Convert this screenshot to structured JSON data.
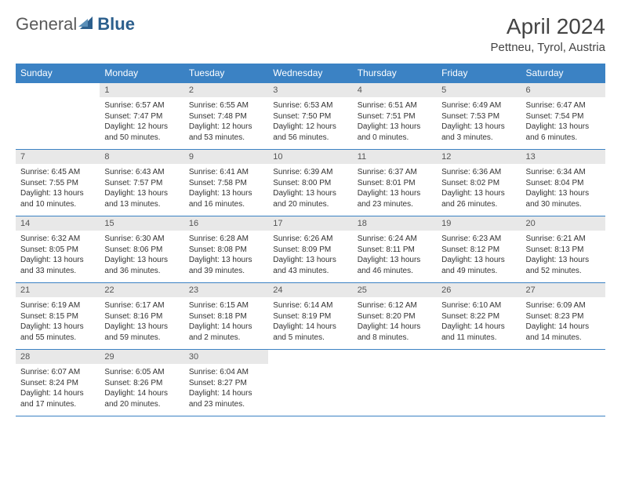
{
  "brand": {
    "text1": "General",
    "text2": "Blue",
    "icon_color": "#2c5f8d"
  },
  "title": "April 2024",
  "location": "Pettneu, Tyrol, Austria",
  "colors": {
    "header_bg": "#3b82c4",
    "header_text": "#ffffff",
    "daynum_bg": "#e8e8e8",
    "border": "#3b82c4"
  },
  "day_names": [
    "Sunday",
    "Monday",
    "Tuesday",
    "Wednesday",
    "Thursday",
    "Friday",
    "Saturday"
  ],
  "weeks": [
    {
      "nums": [
        "",
        "1",
        "2",
        "3",
        "4",
        "5",
        "6"
      ],
      "data": [
        null,
        {
          "sunrise": "6:57 AM",
          "sunset": "7:47 PM",
          "daylight": "12 hours and 50 minutes."
        },
        {
          "sunrise": "6:55 AM",
          "sunset": "7:48 PM",
          "daylight": "12 hours and 53 minutes."
        },
        {
          "sunrise": "6:53 AM",
          "sunset": "7:50 PM",
          "daylight": "12 hours and 56 minutes."
        },
        {
          "sunrise": "6:51 AM",
          "sunset": "7:51 PM",
          "daylight": "13 hours and 0 minutes."
        },
        {
          "sunrise": "6:49 AM",
          "sunset": "7:53 PM",
          "daylight": "13 hours and 3 minutes."
        },
        {
          "sunrise": "6:47 AM",
          "sunset": "7:54 PM",
          "daylight": "13 hours and 6 minutes."
        }
      ]
    },
    {
      "nums": [
        "7",
        "8",
        "9",
        "10",
        "11",
        "12",
        "13"
      ],
      "data": [
        {
          "sunrise": "6:45 AM",
          "sunset": "7:55 PM",
          "daylight": "13 hours and 10 minutes."
        },
        {
          "sunrise": "6:43 AM",
          "sunset": "7:57 PM",
          "daylight": "13 hours and 13 minutes."
        },
        {
          "sunrise": "6:41 AM",
          "sunset": "7:58 PM",
          "daylight": "13 hours and 16 minutes."
        },
        {
          "sunrise": "6:39 AM",
          "sunset": "8:00 PM",
          "daylight": "13 hours and 20 minutes."
        },
        {
          "sunrise": "6:37 AM",
          "sunset": "8:01 PM",
          "daylight": "13 hours and 23 minutes."
        },
        {
          "sunrise": "6:36 AM",
          "sunset": "8:02 PM",
          "daylight": "13 hours and 26 minutes."
        },
        {
          "sunrise": "6:34 AM",
          "sunset": "8:04 PM",
          "daylight": "13 hours and 30 minutes."
        }
      ]
    },
    {
      "nums": [
        "14",
        "15",
        "16",
        "17",
        "18",
        "19",
        "20"
      ],
      "data": [
        {
          "sunrise": "6:32 AM",
          "sunset": "8:05 PM",
          "daylight": "13 hours and 33 minutes."
        },
        {
          "sunrise": "6:30 AM",
          "sunset": "8:06 PM",
          "daylight": "13 hours and 36 minutes."
        },
        {
          "sunrise": "6:28 AM",
          "sunset": "8:08 PM",
          "daylight": "13 hours and 39 minutes."
        },
        {
          "sunrise": "6:26 AM",
          "sunset": "8:09 PM",
          "daylight": "13 hours and 43 minutes."
        },
        {
          "sunrise": "6:24 AM",
          "sunset": "8:11 PM",
          "daylight": "13 hours and 46 minutes."
        },
        {
          "sunrise": "6:23 AM",
          "sunset": "8:12 PM",
          "daylight": "13 hours and 49 minutes."
        },
        {
          "sunrise": "6:21 AM",
          "sunset": "8:13 PM",
          "daylight": "13 hours and 52 minutes."
        }
      ]
    },
    {
      "nums": [
        "21",
        "22",
        "23",
        "24",
        "25",
        "26",
        "27"
      ],
      "data": [
        {
          "sunrise": "6:19 AM",
          "sunset": "8:15 PM",
          "daylight": "13 hours and 55 minutes."
        },
        {
          "sunrise": "6:17 AM",
          "sunset": "8:16 PM",
          "daylight": "13 hours and 59 minutes."
        },
        {
          "sunrise": "6:15 AM",
          "sunset": "8:18 PM",
          "daylight": "14 hours and 2 minutes."
        },
        {
          "sunrise": "6:14 AM",
          "sunset": "8:19 PM",
          "daylight": "14 hours and 5 minutes."
        },
        {
          "sunrise": "6:12 AM",
          "sunset": "8:20 PM",
          "daylight": "14 hours and 8 minutes."
        },
        {
          "sunrise": "6:10 AM",
          "sunset": "8:22 PM",
          "daylight": "14 hours and 11 minutes."
        },
        {
          "sunrise": "6:09 AM",
          "sunset": "8:23 PM",
          "daylight": "14 hours and 14 minutes."
        }
      ]
    },
    {
      "nums": [
        "28",
        "29",
        "30",
        "",
        "",
        "",
        ""
      ],
      "data": [
        {
          "sunrise": "6:07 AM",
          "sunset": "8:24 PM",
          "daylight": "14 hours and 17 minutes."
        },
        {
          "sunrise": "6:05 AM",
          "sunset": "8:26 PM",
          "daylight": "14 hours and 20 minutes."
        },
        {
          "sunrise": "6:04 AM",
          "sunset": "8:27 PM",
          "daylight": "14 hours and 23 minutes."
        },
        null,
        null,
        null,
        null
      ]
    }
  ],
  "labels": {
    "sunrise": "Sunrise:",
    "sunset": "Sunset:",
    "daylight": "Daylight:"
  }
}
